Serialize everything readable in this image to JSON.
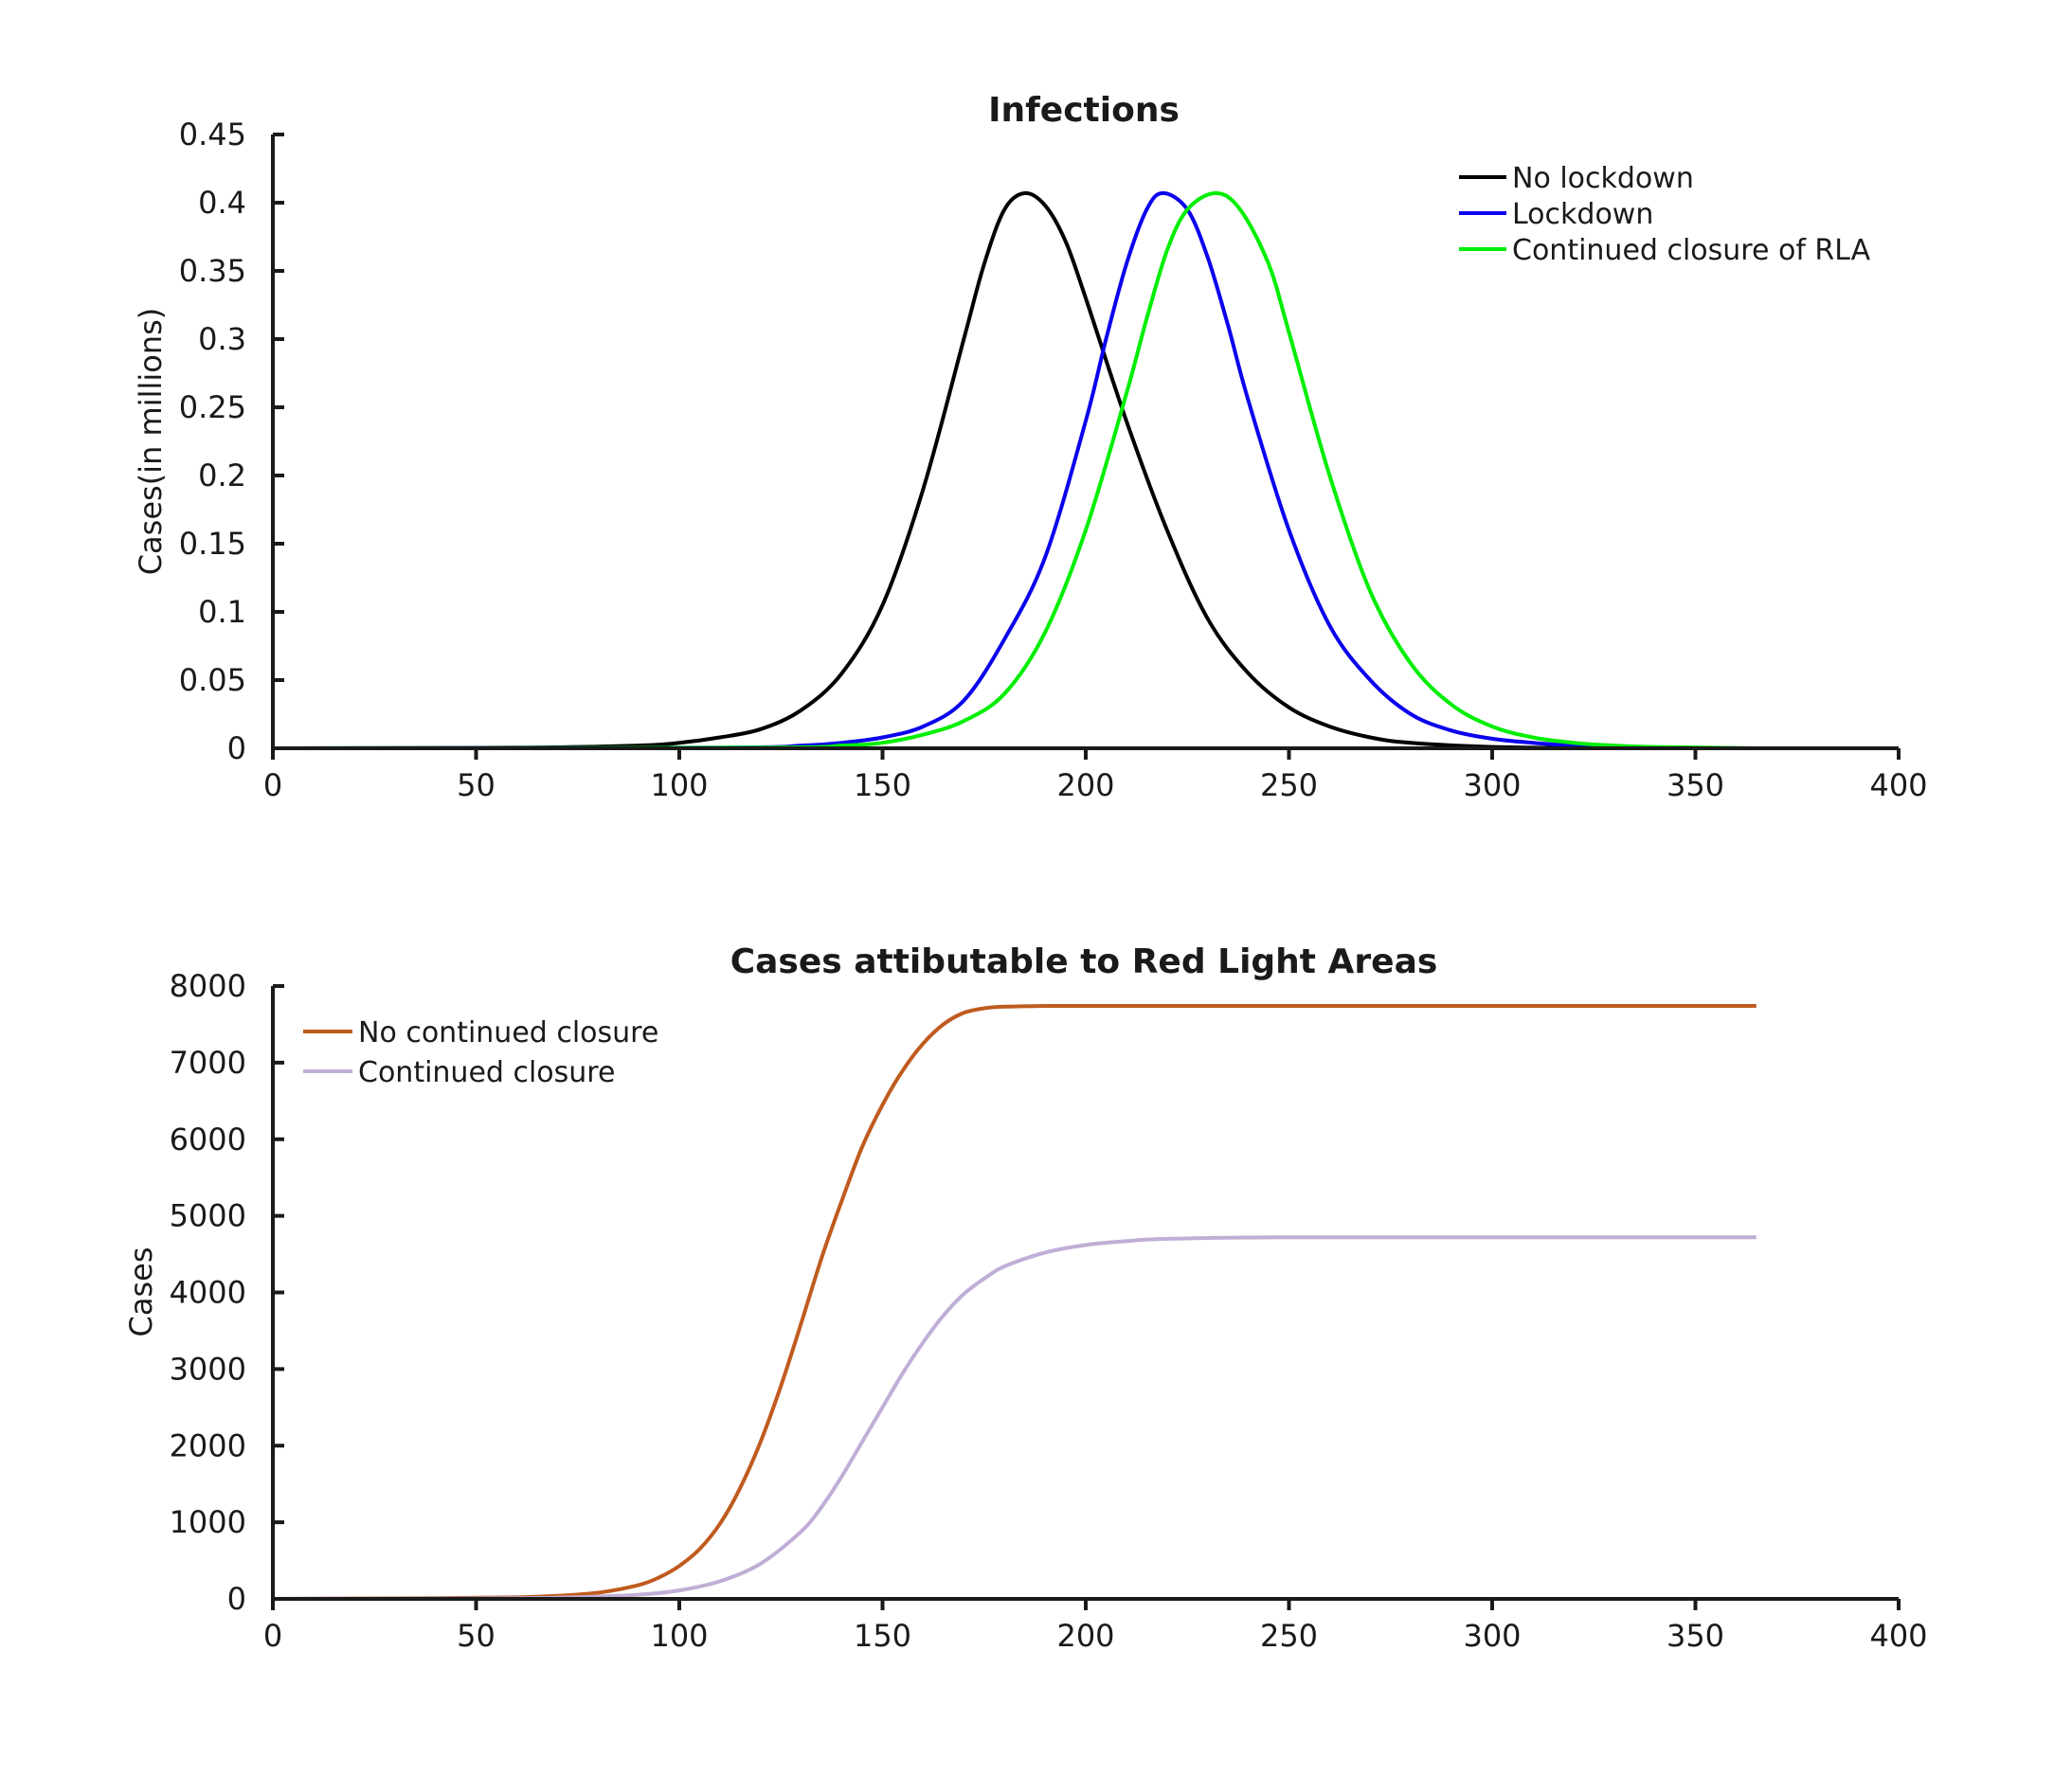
{
  "chart_data": [
    {
      "type": "line",
      "title": "Infections",
      "xlabel": "",
      "ylabel": "Cases(in millions)",
      "xlim": [
        0,
        400
      ],
      "ylim": [
        0,
        0.45
      ],
      "xticks": [
        0,
        50,
        100,
        150,
        200,
        250,
        300,
        350,
        400
      ],
      "yticks": [
        0,
        0.05,
        0.1,
        0.15,
        0.2,
        0.25,
        0.3,
        0.35,
        0.4,
        0.45
      ],
      "xtick_labels": [
        "0",
        "50",
        "100",
        "150",
        "200",
        "250",
        "300",
        "350",
        "400"
      ],
      "ytick_labels": [
        "0",
        "0.05",
        "0.1",
        "0.15",
        "0.2",
        "0.25",
        "0.3",
        "0.35",
        "0.4",
        "0.45"
      ],
      "grid": false,
      "legend_position": "top-right",
      "series": [
        {
          "name": "No lockdown",
          "color": "#000000",
          "x": [
            0,
            60,
            90,
            100,
            110,
            120,
            130,
            140,
            150,
            160,
            170,
            175,
            180,
            185,
            190,
            195,
            200,
            210,
            220,
            230,
            240,
            250,
            260,
            270,
            280,
            300,
            320,
            340,
            365
          ],
          "y": [
            0,
            0.0005,
            0.002,
            0.004,
            0.008,
            0.014,
            0.028,
            0.055,
            0.105,
            0.19,
            0.3,
            0.355,
            0.395,
            0.407,
            0.398,
            0.372,
            0.33,
            0.24,
            0.16,
            0.095,
            0.055,
            0.03,
            0.016,
            0.008,
            0.004,
            0.001,
            0.0003,
            0.0001,
            0
          ]
        },
        {
          "name": "Lockdown",
          "color": "#0a00ee",
          "x": [
            0,
            110,
            130,
            140,
            150,
            160,
            170,
            180,
            190,
            200,
            205,
            210,
            215,
            219,
            225,
            230,
            235,
            240,
            250,
            260,
            270,
            280,
            290,
            300,
            310,
            320,
            340,
            365
          ],
          "y": [
            0,
            0.0005,
            0.002,
            0.004,
            0.008,
            0.016,
            0.035,
            0.08,
            0.14,
            0.24,
            0.3,
            0.355,
            0.395,
            0.407,
            0.395,
            0.36,
            0.31,
            0.255,
            0.16,
            0.09,
            0.05,
            0.025,
            0.013,
            0.007,
            0.004,
            0.002,
            0.0005,
            0
          ]
        },
        {
          "name": "Continued closure of RLA",
          "color": "#00ee00",
          "x": [
            0,
            120,
            140,
            150,
            160,
            170,
            180,
            190,
            200,
            210,
            215,
            220,
            225,
            232,
            238,
            245,
            250,
            260,
            270,
            280,
            290,
            300,
            310,
            320,
            330,
            340,
            365
          ],
          "y": [
            0,
            0.0005,
            0.002,
            0.004,
            0.01,
            0.02,
            0.04,
            0.085,
            0.16,
            0.26,
            0.315,
            0.365,
            0.395,
            0.407,
            0.395,
            0.355,
            0.305,
            0.2,
            0.115,
            0.062,
            0.032,
            0.016,
            0.008,
            0.004,
            0.002,
            0.001,
            0
          ]
        }
      ]
    },
    {
      "type": "line",
      "title": "Cases attibutable to Red Light Areas",
      "xlabel": "",
      "ylabel": "Cases",
      "xlim": [
        0,
        400
      ],
      "ylim": [
        0,
        8000
      ],
      "xticks": [
        0,
        50,
        100,
        150,
        200,
        250,
        300,
        350,
        400
      ],
      "yticks": [
        0,
        1000,
        2000,
        3000,
        4000,
        5000,
        6000,
        7000,
        8000
      ],
      "xtick_labels": [
        "0",
        "50",
        "100",
        "150",
        "200",
        "250",
        "300",
        "350",
        "400"
      ],
      "ytick_labels": [
        "0",
        "1000",
        "2000",
        "3000",
        "4000",
        "5000",
        "6000",
        "7000",
        "8000"
      ],
      "grid": false,
      "legend_position": "top-left",
      "series": [
        {
          "name": "No continued closure",
          "color": "#bf5b1f",
          "x": [
            0,
            40,
            60,
            70,
            80,
            90,
            95,
            100,
            105,
            110,
            115,
            120,
            125,
            130,
            135,
            140,
            145,
            150,
            155,
            160,
            165,
            170,
            175,
            180,
            190,
            200,
            250,
            300,
            365
          ],
          "y": [
            0,
            10,
            20,
            40,
            80,
            180,
            280,
            430,
            650,
            980,
            1450,
            2050,
            2780,
            3600,
            4450,
            5200,
            5900,
            6450,
            6900,
            7250,
            7500,
            7650,
            7710,
            7730,
            7740,
            7740,
            7740,
            7740,
            7740
          ]
        },
        {
          "name": "Continued closure",
          "color": "#c0aed6",
          "x": [
            0,
            50,
            70,
            80,
            90,
            100,
            110,
            120,
            130,
            135,
            140,
            145,
            150,
            155,
            160,
            165,
            170,
            175,
            180,
            190,
            200,
            210,
            220,
            250,
            300,
            365
          ],
          "y": [
            0,
            5,
            15,
            30,
            55,
            110,
            230,
            460,
            880,
            1200,
            1600,
            2050,
            2500,
            2950,
            3350,
            3700,
            3980,
            4180,
            4340,
            4520,
            4620,
            4670,
            4700,
            4720,
            4720,
            4720
          ]
        }
      ]
    }
  ]
}
